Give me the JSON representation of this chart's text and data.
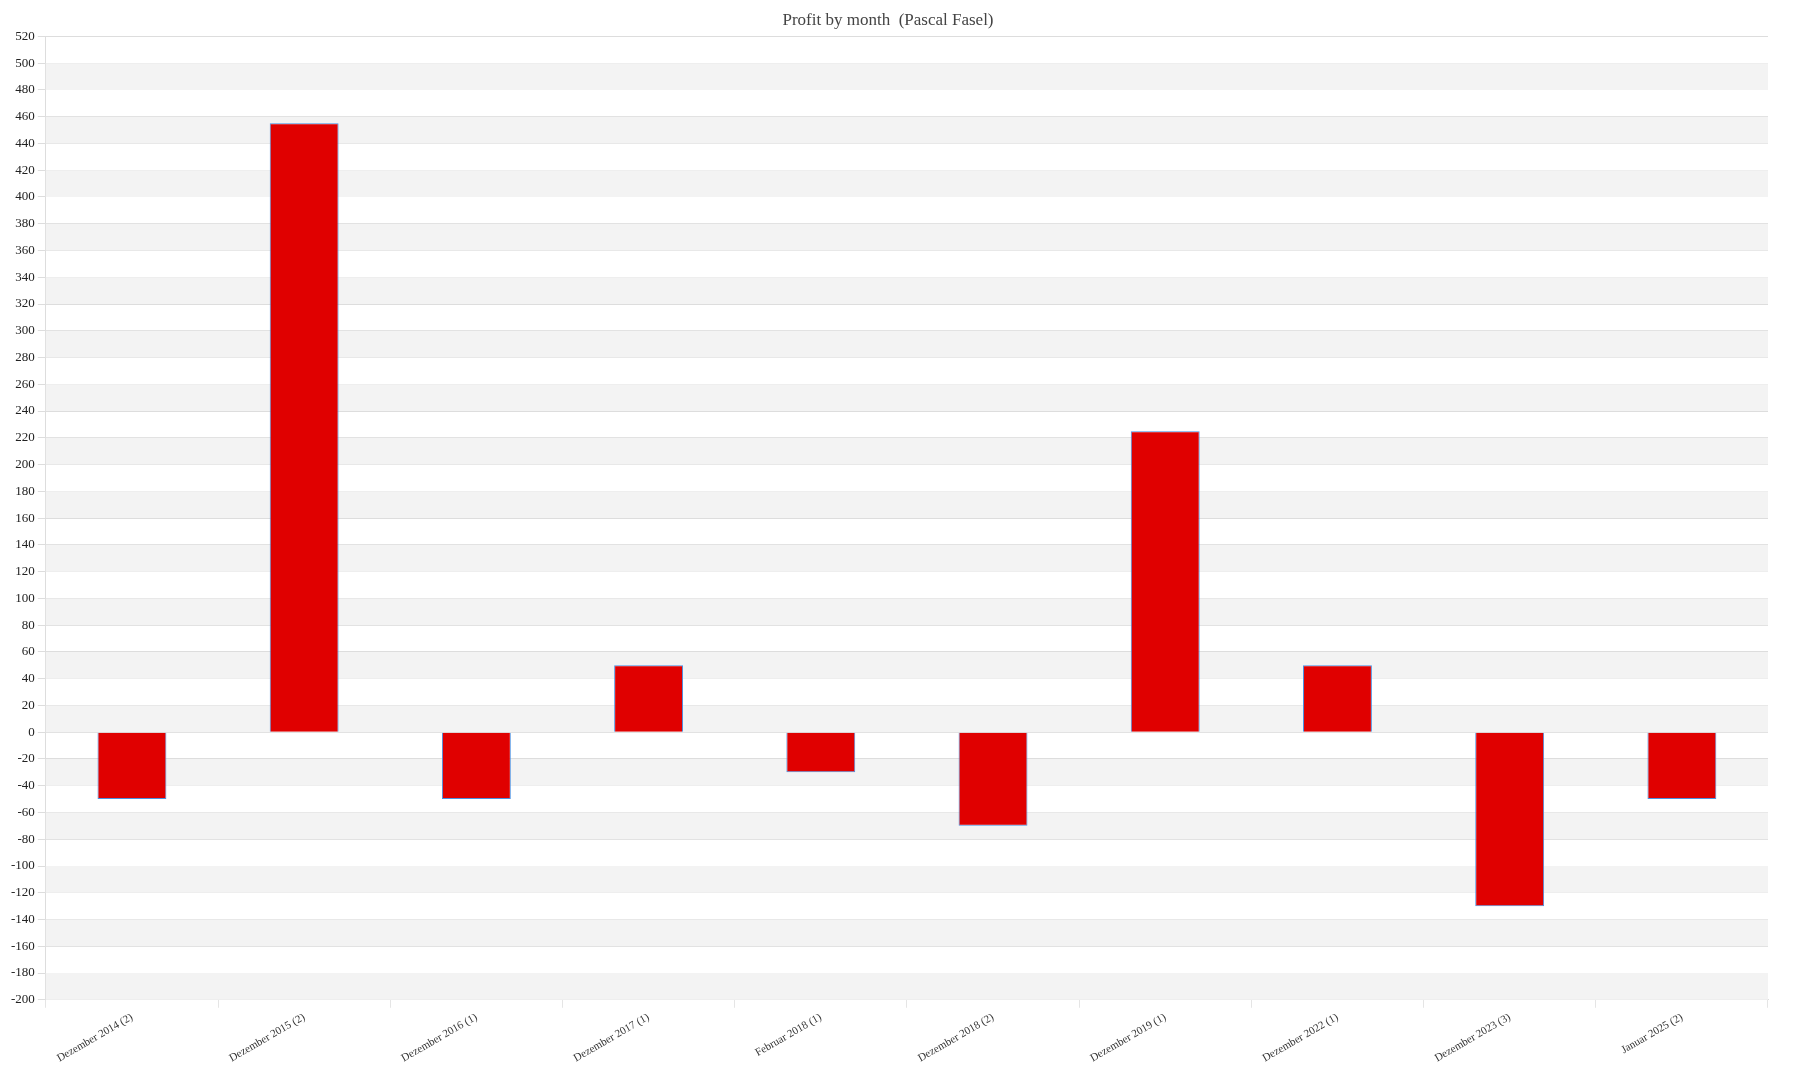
{
  "chart_data": {
    "type": "bar",
    "title": "Profit by month  (Pascal Fasel)",
    "categories": [
      "Dezember 2014 (2)",
      "Dezember 2015 (2)",
      "Dezember 2016 (1)",
      "Dezember 2017 (1)",
      "Februar 2018 (1)",
      "Dezember 2018 (2)",
      "Dezember 2019 (1)",
      "Dezember 2022 (1)",
      "Dezember 2023 (3)",
      "Januar 2025 (2)"
    ],
    "values": [
      -50,
      455,
      -50,
      50,
      -30,
      -70,
      225,
      50,
      -130,
      -50
    ],
    "color": "#e00000",
    "ylim": [
      -200,
      520
    ],
    "yticks": [
      -200,
      -180,
      -160,
      -140,
      -120,
      -100,
      -80,
      -60,
      -40,
      -20,
      0,
      20,
      40,
      60,
      80,
      100,
      120,
      140,
      160,
      180,
      200,
      220,
      240,
      260,
      280,
      300,
      320,
      340,
      360,
      380,
      400,
      420,
      440,
      460,
      480,
      500,
      520
    ],
    "grid": true,
    "legend": false
  }
}
